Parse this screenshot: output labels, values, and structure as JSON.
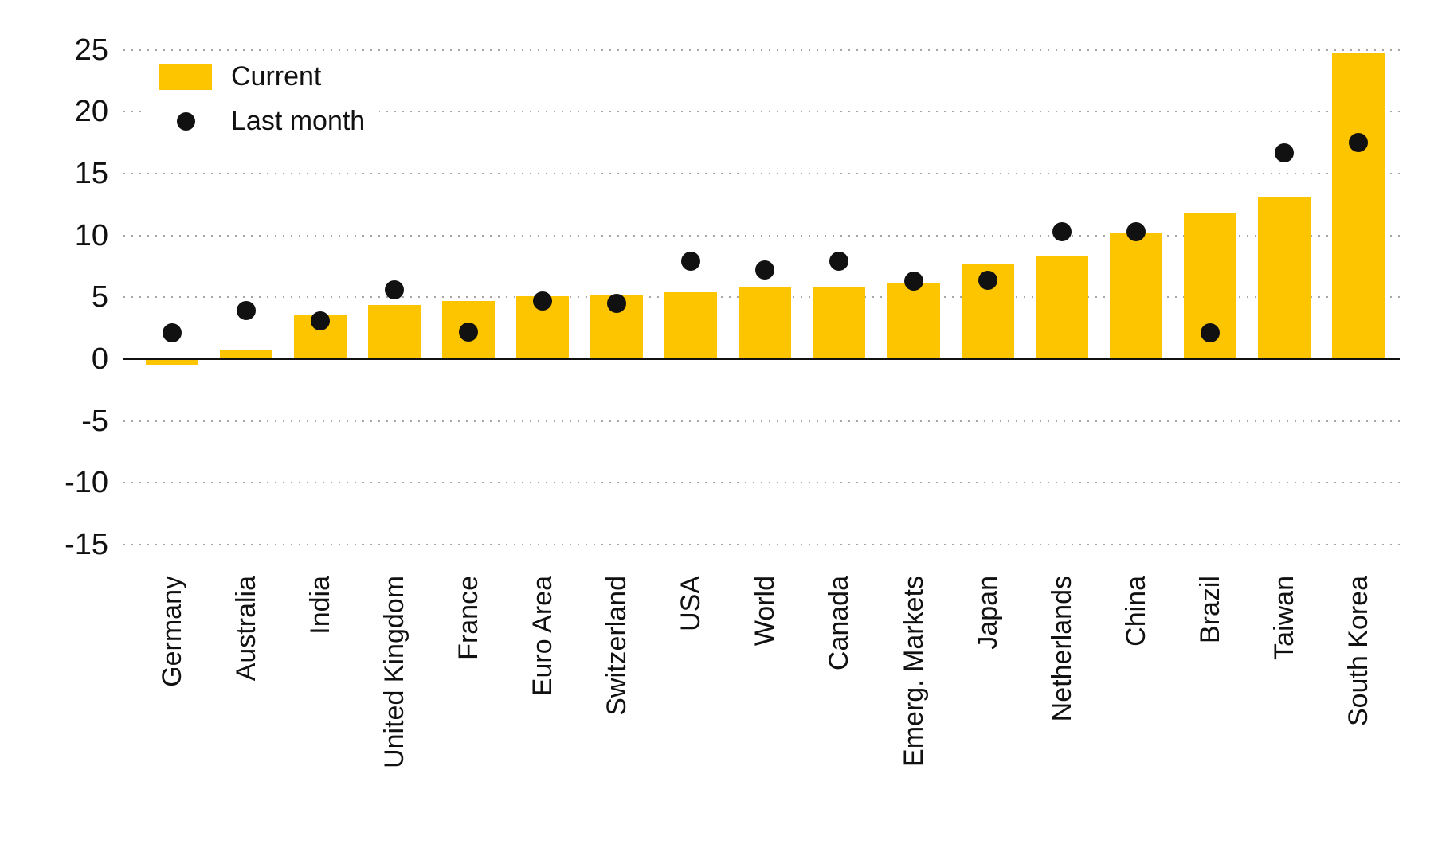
{
  "chart_data": {
    "type": "bar",
    "title": "",
    "xlabel": "",
    "ylabel": "",
    "categories": [
      "Germany",
      "Australia",
      "India",
      "United Kingdom",
      "France",
      "Euro Area",
      "Switzerland",
      "USA",
      "World",
      "Canada",
      "Emerg. Markets",
      "Japan",
      "Netherlands",
      "China",
      "Brazil",
      "Taiwan",
      "South Korea"
    ],
    "series": [
      {
        "name": "Current",
        "type": "bar",
        "color": "#fdc400",
        "values": [
          -0.4,
          0.7,
          3.6,
          4.4,
          4.7,
          5.1,
          5.2,
          5.4,
          5.8,
          5.8,
          6.2,
          7.7,
          8.4,
          10.2,
          11.8,
          13.1,
          24.8
        ]
      },
      {
        "name": "Last month",
        "type": "scatter",
        "color": "#111111",
        "values": [
          2.1,
          3.9,
          3.1,
          5.6,
          2.2,
          4.7,
          4.5,
          7.9,
          7.2,
          7.9,
          6.3,
          6.4,
          10.3,
          10.3,
          2.1,
          16.7,
          17.5
        ]
      }
    ],
    "y_axis": {
      "tick_labels": [
        "25",
        "20",
        "15",
        "10",
        "5",
        "0",
        "-5",
        "-10",
        "-15"
      ],
      "tick_values": [
        25,
        20,
        15,
        10,
        5,
        0,
        -5,
        -10,
        -15
      ],
      "gridline_values": [
        25,
        20,
        15,
        10,
        5,
        -5,
        -10,
        -15
      ],
      "min": -15,
      "max": 25
    },
    "legend": {
      "position": "top-left",
      "entries": [
        "Current",
        "Last month"
      ]
    },
    "grid": "horizontal-dotted",
    "background": "#ffffff"
  }
}
